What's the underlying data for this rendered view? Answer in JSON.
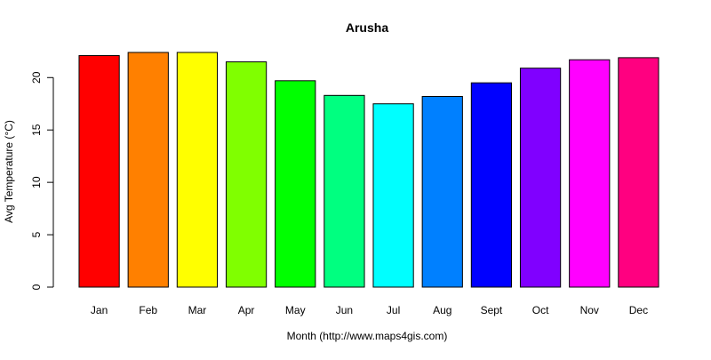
{
  "chart_data": {
    "type": "bar",
    "title": "Arusha",
    "xlabel": "Month (http://www.maps4gis.com)",
    "ylabel": "Avg Temperature (°C)",
    "categories": [
      "Jan",
      "Feb",
      "Mar",
      "Apr",
      "May",
      "Jun",
      "Jul",
      "Aug",
      "Sept",
      "Oct",
      "Nov",
      "Dec"
    ],
    "values": [
      22.1,
      22.4,
      22.4,
      21.5,
      19.7,
      18.3,
      17.5,
      18.2,
      19.5,
      20.9,
      21.7,
      21.9
    ],
    "colors": [
      "#FF0000",
      "#FF8000",
      "#FFFF00",
      "#80FF00",
      "#00FF00",
      "#00FF80",
      "#00FFFF",
      "#0080FF",
      "#0000FF",
      "#8000FF",
      "#FF00FF",
      "#FF0080"
    ],
    "ylim": [
      0,
      22.4
    ],
    "yticks": [
      0,
      5,
      10,
      15,
      20
    ],
    "grid": false,
    "legend": "none"
  }
}
